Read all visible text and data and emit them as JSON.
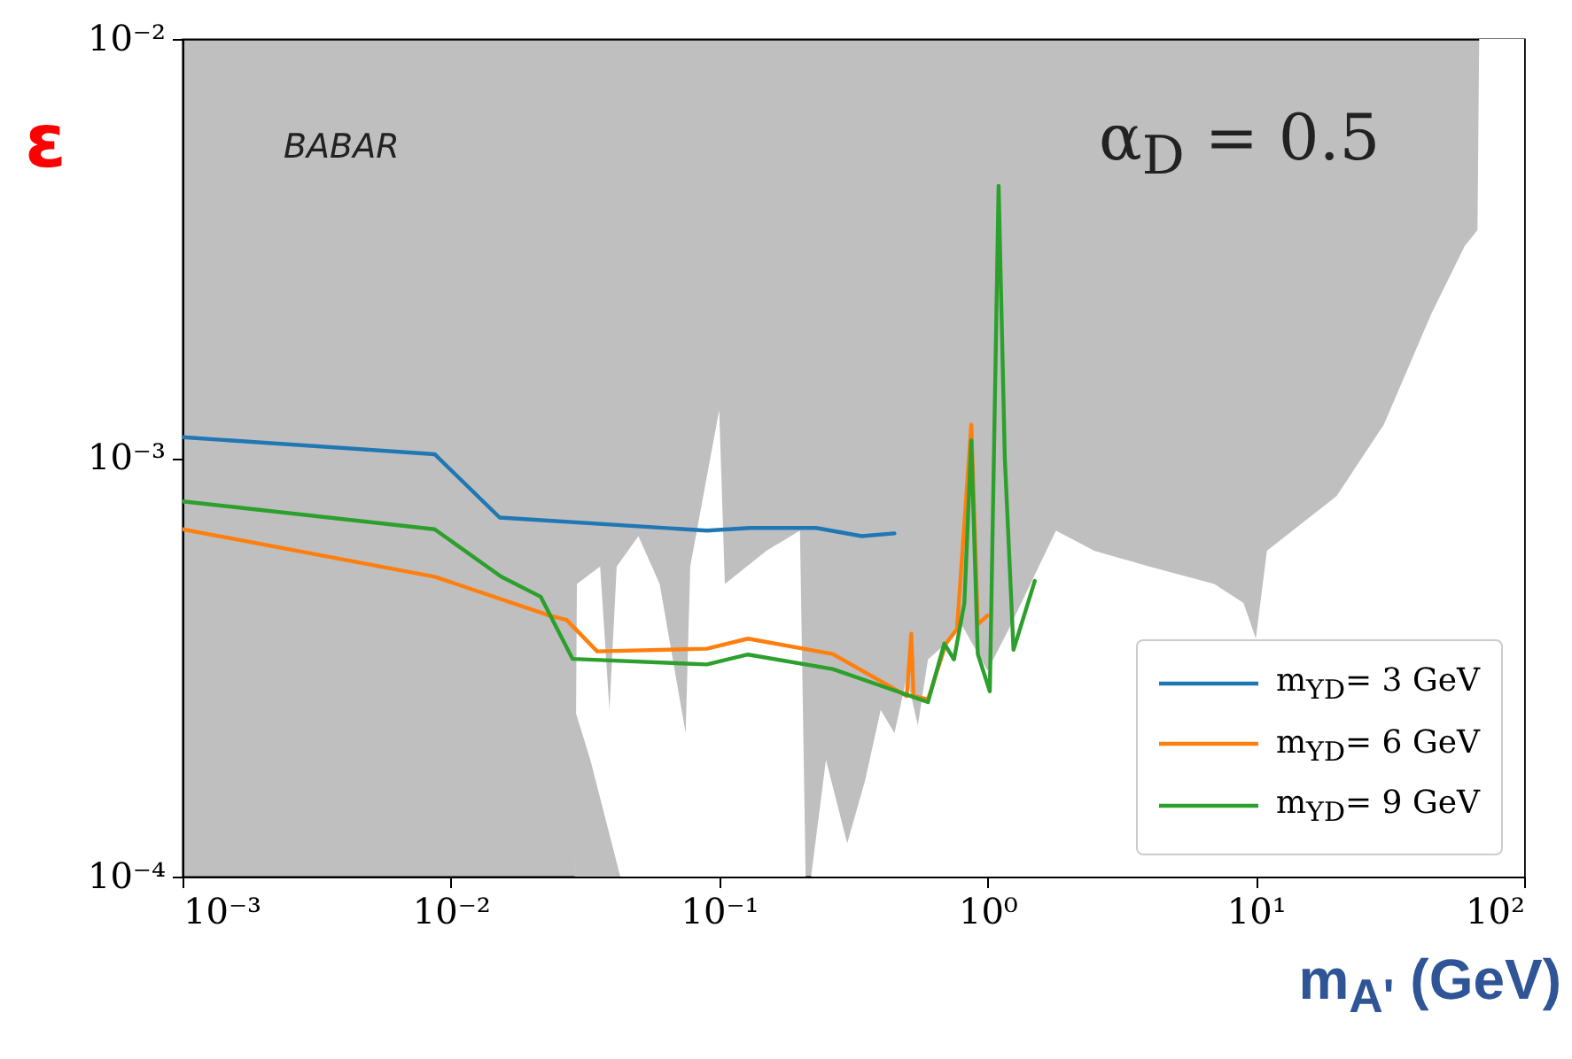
{
  "chart_data": {
    "type": "line",
    "xlabel": "m$_{A'}$ (GeV)",
    "ylabel": "ε",
    "log": "xy",
    "xlim": [
      0.001,
      100
    ],
    "ylim": [
      0.0001,
      0.01
    ],
    "xticks": [
      {
        "value": 0.001,
        "label": "10⁻³"
      },
      {
        "value": 0.01,
        "label": "10⁻²"
      },
      {
        "value": 0.1,
        "label": "10⁻¹"
      },
      {
        "value": 1,
        "label": "10⁰"
      },
      {
        "value": 10,
        "label": "10¹"
      },
      {
        "value": 100,
        "label": "10²"
      }
    ],
    "yticks": [
      {
        "value": 0.0001,
        "label": "10⁻⁴"
      },
      {
        "value": 0.001,
        "label": "10⁻³"
      },
      {
        "value": 0.01,
        "label": "10⁻²"
      }
    ],
    "legend": "bottom right",
    "grid": false,
    "annotations": [
      "BABAR",
      "α$_{D}$ = 0.5"
    ],
    "series": [
      {
        "type": "area",
        "color": "#ffffff",
        "x": [
          0.001,
          0.029,
          0.0295,
          0.036,
          0.039,
          0.0415,
          0.05,
          0.06,
          0.075,
          0.078,
          0.1,
          0.105,
          0.15,
          0.2,
          0.21,
          0.22,
          0.25,
          0.3,
          0.35,
          0.4,
          0.45,
          0.5,
          0.55,
          0.6,
          0.7,
          0.8,
          1.0,
          1.2,
          1.8,
          2.5,
          4,
          7,
          9,
          10,
          11,
          20,
          30,
          45,
          60,
          67,
          68,
          100
        ],
        "values": [
          0.0001,
          0.0001,
          0.0005,
          0.00055,
          0.00025,
          0.00055,
          0.00065,
          0.0005,
          0.00022,
          0.00055,
          0.0013,
          0.0005,
          0.0006,
          0.00067,
          0.0001,
          0.0001,
          0.00019,
          0.00012,
          0.00017,
          0.00025,
          0.00022,
          0.0003,
          0.00023,
          0.00033,
          0.00036,
          0.0004,
          0.00031,
          0.00039,
          0.00067,
          0.0006,
          0.00055,
          0.0005,
          0.00045,
          0.00037,
          0.0006,
          0.00081,
          0.0012,
          0.0022,
          0.0032,
          0.0035,
          0.01,
          0.01
        ]
      },
      {
        "type": "area",
        "color": "#bfbfbf",
        "x": [
          0.029,
          0.0331,
          0.0428
        ],
        "values": [
          0.00025,
          0.00019,
          0.0001
        ]
      },
      {
        "name": "m$_{ΥD}$= 3 GeV",
        "color": "#1f77b4",
        "x": [
          0.001,
          0.0087,
          0.0152,
          0.09,
          0.13,
          0.23,
          0.34,
          0.45
        ],
        "values": [
          0.00112,
          0.00102,
          0.00072,
          0.00067,
          0.00068,
          0.00068,
          0.00065,
          0.00066
        ]
      },
      {
        "name": "m$_{ΥD}$= 6 GeV",
        "color": "#ff7f0e",
        "x": [
          0.001,
          0.0087,
          0.0233,
          0.027,
          0.0351,
          0.09,
          0.128,
          0.265,
          0.5,
          0.52,
          0.53,
          0.6,
          0.7,
          0.77,
          0.87,
          0.92,
          1.0
        ],
        "values": [
          0.000675,
          0.00052,
          0.00042,
          0.00041,
          0.000345,
          0.00035,
          0.00037,
          0.00034,
          0.00027,
          0.00038,
          0.00027,
          0.000265,
          0.00036,
          0.00039,
          0.0012,
          0.0004,
          0.00042
        ]
      },
      {
        "name": "m$_{ΥD}$= 9 GeV",
        "color": "#2ca02c",
        "x": [
          0.001,
          0.0087,
          0.0154,
          0.0216,
          0.0284,
          0.09,
          0.128,
          0.265,
          0.6,
          0.69,
          0.75,
          0.82,
          0.87,
          0.92,
          1.02,
          1.1,
          1.16,
          1.25,
          1.5
        ],
        "values": [
          0.000787,
          0.000675,
          0.00052,
          0.000466,
          0.000331,
          0.000321,
          0.000339,
          0.000313,
          0.000261,
          0.00036,
          0.00033,
          0.00045,
          0.0011,
          0.00034,
          0.000277,
          0.00446,
          0.001,
          0.000348,
          0.000508
        ]
      }
    ]
  }
}
